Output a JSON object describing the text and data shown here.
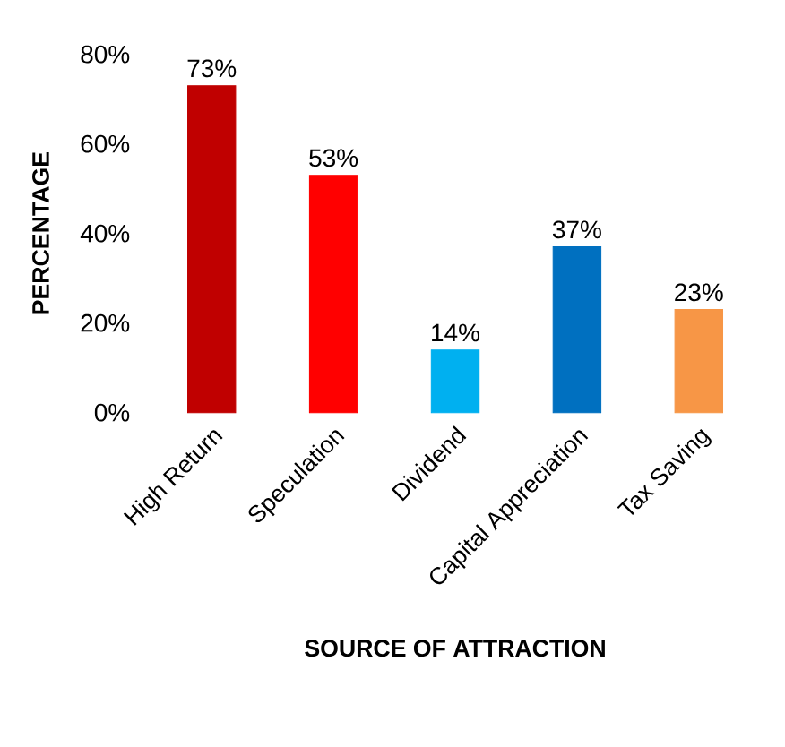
{
  "chart_data": {
    "type": "bar",
    "xlabel": "SOURCE OF ATTRACTION",
    "ylabel": "PERCENTAGE",
    "categories": [
      "High Return",
      "Speculation",
      "Dividend",
      "Capital Appreciation",
      "Tax Saving"
    ],
    "values": [
      73,
      53,
      14,
      37,
      23
    ],
    "value_labels": [
      "73%",
      "53%",
      "14%",
      "37%",
      "23%"
    ],
    "colors": [
      "#c00000",
      "#ff0000",
      "#00b0f0",
      "#0070c0",
      "#f79646"
    ],
    "ylim": [
      0,
      80
    ],
    "yticks": [
      {
        "value": 0,
        "label": "0%"
      },
      {
        "value": 20,
        "label": "20%"
      },
      {
        "value": 40,
        "label": "40%"
      },
      {
        "value": 60,
        "label": "60%"
      },
      {
        "value": 80,
        "label": "80%"
      }
    ],
    "grid": false
  }
}
